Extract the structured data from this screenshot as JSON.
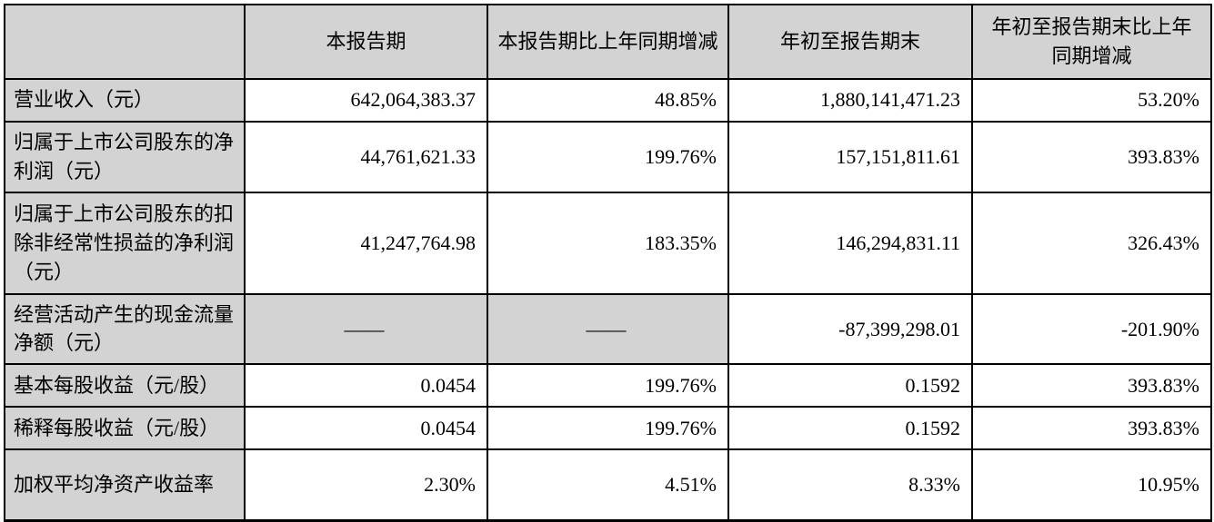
{
  "table": {
    "columns": [
      "",
      "本报告期",
      "本报告期比上年同期增减",
      "年初至报告期末",
      "年初至报告期末比上年同期增减"
    ],
    "rows": [
      {
        "label": "营业收入（元）",
        "values": [
          "642,064,383.37",
          "48.85%",
          "1,880,141,471.23",
          "53.20%"
        ]
      },
      {
        "label": "归属于上市公司股东的净利润（元）",
        "values": [
          "44,761,621.33",
          "199.76%",
          "157,151,811.61",
          "393.83%"
        ]
      },
      {
        "label": "归属于上市公司股东的扣除非经常性损益的净利润（元）",
        "values": [
          "41,247,764.98",
          "183.35%",
          "146,294,831.11",
          "326.43%"
        ]
      },
      {
        "label": "经营活动产生的现金流量净额（元）",
        "values": [
          "——",
          "——",
          "-87,399,298.01",
          "-201.90%"
        ]
      },
      {
        "label": "基本每股收益（元/股）",
        "values": [
          "0.0454",
          "199.76%",
          "0.1592",
          "393.83%"
        ]
      },
      {
        "label": "稀释每股收益（元/股）",
        "values": [
          "0.0454",
          "199.76%",
          "0.1592",
          "393.83%"
        ]
      },
      {
        "label": "加权平均净资产收益率",
        "values": [
          "2.30%",
          "4.51%",
          "8.33%",
          "10.95%"
        ]
      }
    ],
    "colors": {
      "header_fill": "#d3d3d3",
      "label_fill": "#d3d3d3",
      "dash_fill": "#d3d3d3",
      "border": "#000000",
      "text": "#000000",
      "background": "#ffffff"
    }
  }
}
